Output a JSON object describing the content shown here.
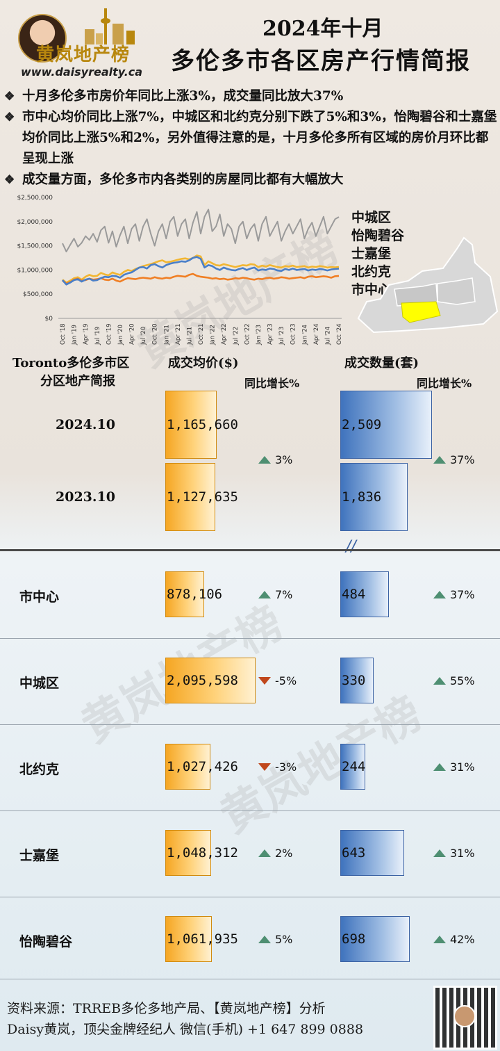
{
  "brand": {
    "name": "黄岚地产榜",
    "url": "www.daisyrealty.ca"
  },
  "title": {
    "line1": "2024年十月",
    "line2": "多伦多市各区房产行情简报"
  },
  "bullets": [
    "十月多伦多市房价年同比上涨3%，成交量同比放大37%",
    "市中心均价同比上涨7%，中城区和北约克分别下跌了5%和3%，怡陶碧谷和士嘉堡均价同比上涨5%和2%，另外值得注意的是，十月多伦多所有区域的房价月环比都呈现上涨",
    "成交量方面，多伦多市内各类别的房屋同比都有大幅放大"
  ],
  "map_legend": [
    "中城区",
    "怡陶碧谷",
    "士嘉堡",
    "北约克",
    "市中心"
  ],
  "colors": {
    "orange": "#f5a623",
    "blue": "#4a7fc8",
    "gray": "#9a9a9a",
    "line_orange": "#f07f24",
    "line_yellow": "#f2b632",
    "highlight": "#ffff00",
    "up": "#4e8f72",
    "down": "#c0471c"
  },
  "table": {
    "header_left": "Toronto多伦多市区",
    "header_left2": "分区地产简报",
    "header_price": "成交均价($)",
    "header_volume": "成交数量(套)",
    "header_yoy_price": "同比增长%",
    "header_yoy_volume": "同比增长%",
    "total_rows": [
      {
        "label": "2024.10",
        "price": "1,165,660",
        "volume": "2,509"
      },
      {
        "label": "2023.10",
        "price": "1,127,635",
        "volume": "1,836"
      }
    ],
    "total_price_change": "3%",
    "total_volume_change": "37%",
    "break_mark": "//",
    "districts": [
      {
        "label": "市中心",
        "price": "878,106",
        "price_value": 878106,
        "price_change": "7%",
        "price_dir": "up",
        "volume": "484",
        "volume_value": 484,
        "volume_change": "37%"
      },
      {
        "label": "中城区",
        "price": "2,095,598",
        "price_value": 2095598,
        "price_change": "-5%",
        "price_dir": "down",
        "volume": "330",
        "volume_value": 330,
        "volume_change": "55%"
      },
      {
        "label": "北约克",
        "price": "1,027,426",
        "price_value": 1027426,
        "price_change": "-3%",
        "price_dir": "down",
        "volume": "244",
        "volume_value": 244,
        "volume_change": "31%"
      },
      {
        "label": "士嘉堡",
        "price": "1,048,312",
        "price_value": 1048312,
        "price_change": "2%",
        "price_dir": "up",
        "volume": "643",
        "volume_value": 643,
        "volume_change": "31%"
      },
      {
        "label": "怡陶碧谷",
        "price": "1,061,935",
        "price_value": 1061935,
        "price_change": "5%",
        "price_dir": "up",
        "volume": "698",
        "volume_value": 698,
        "volume_change": "42%"
      }
    ]
  },
  "footer": {
    "line1": "资料来源：TRREB多伦多地产局、【黄岚地产榜】分析",
    "line2": "Daisy黄岚，顶尖金牌经纪人   微信(手机) +1 647 899 0888"
  },
  "watermark": "黄岚地产榜",
  "chart_data": {
    "type": "line",
    "ylim": [
      0,
      2500000
    ],
    "yticks": [
      "$0",
      "$500,000",
      "$1,000,000",
      "$1,500,000",
      "$2,000,000",
      "$2,500,000"
    ],
    "x_tick_labels": [
      "Oct '18",
      "Jan '19",
      "Apr '19",
      "Jul '19",
      "Oct '19",
      "Jan '20",
      "Apr '20",
      "Jul '20",
      "Oct '20",
      "Jan '21",
      "Apr '21",
      "Jul '21",
      "Oct '21",
      "Jan '22",
      "Apr '22",
      "Jul '22",
      "Oct '22",
      "Jan '23",
      "Apr '23",
      "Jul '23",
      "Oct '23",
      "Jan '24",
      "Apr '24",
      "Jul '24",
      "Oct '24"
    ],
    "series": [
      {
        "color": "#9a9a9a",
        "values": [
          1550000,
          1380000,
          1520000,
          1650000,
          1480000,
          1560000,
          1700000,
          1620000,
          1750000,
          1580000,
          1820000,
          1900000,
          1560000,
          1800000,
          1480000,
          1720000,
          1900000,
          1550000,
          1850000,
          1950000,
          1600000,
          1900000,
          2050000,
          1750000,
          1500000,
          1800000,
          1950000,
          1650000,
          2000000,
          2100000,
          1700000,
          1950000,
          2050000,
          1650000,
          1980000,
          2200000,
          1750000,
          2100000,
          2250000,
          1800000,
          1900000,
          2150000,
          1700000,
          1950000,
          1850000,
          1550000,
          1900000,
          2000000,
          1650000,
          1850000,
          1950000,
          1600000,
          1950000,
          2100000,
          1700000,
          1850000,
          2000000,
          1600000,
          1800000,
          1950000,
          1750000,
          1900000,
          2050000,
          1650000,
          1850000,
          1980000,
          1700000,
          1900000,
          2100000,
          1750000,
          1900000,
          2050000,
          2095598
        ]
      },
      {
        "color": "#f2b632",
        "values": [
          800000,
          740000,
          780000,
          830000,
          850000,
          800000,
          860000,
          900000,
          870000,
          880000,
          940000,
          910000,
          890000,
          950000,
          920000,
          900000,
          960000,
          1000000,
          980000,
          1020000,
          1050000,
          1080000,
          1100000,
          1120000,
          1150000,
          1180000,
          1200000,
          1160000,
          1170000,
          1190000,
          1210000,
          1230000,
          1240000,
          1220000,
          1250000,
          1300000,
          1280000,
          1100000,
          1180000,
          1140000,
          1100000,
          1090000,
          1120000,
          1100000,
          1080000,
          1060000,
          1080000,
          1100000,
          1090000,
          1120000,
          1110000,
          1060000,
          1090000,
          1070000,
          1100000,
          1080000,
          1060000,
          1050000,
          1080000,
          1070000,
          1090000,
          1060000,
          1070000,
          1080000,
          1050000,
          1070000,
          1060000,
          1080000,
          1070000,
          1050000,
          1060000,
          1055000,
          1061935
        ]
      },
      {
        "color": "#f07f24",
        "values": [
          780000,
          720000,
          750000,
          800000,
          820000,
          780000,
          790000,
          820000,
          800000,
          810000,
          830000,
          800000,
          790000,
          820000,
          780000,
          760000,
          800000,
          830000,
          820000,
          810000,
          830000,
          840000,
          830000,
          820000,
          850000,
          830000,
          820000,
          840000,
          830000,
          860000,
          880000,
          870000,
          860000,
          900000,
          920000,
          880000,
          860000,
          850000,
          840000,
          820000,
          830000,
          810000,
          820000,
          800000,
          810000,
          830000,
          820000,
          840000,
          830000,
          810000,
          800000,
          820000,
          810000,
          830000,
          840000,
          820000,
          830000,
          850000,
          840000,
          820000,
          830000,
          840000,
          850000,
          830000,
          860000,
          870000,
          850000,
          860000,
          870000,
          860000,
          840000,
          870000,
          878106
        ]
      },
      {
        "color": "#4a7fc8",
        "values": [
          790000,
          700000,
          740000,
          790000,
          810000,
          760000,
          800000,
          820000,
          780000,
          790000,
          830000,
          860000,
          850000,
          880000,
          870000,
          840000,
          900000,
          930000,
          950000,
          1000000,
          1050000,
          1060000,
          1030000,
          1100000,
          1120000,
          1080000,
          1050000,
          1100000,
          1130000,
          1150000,
          1160000,
          1180000,
          1170000,
          1200000,
          1250000,
          1270000,
          1230000,
          1050000,
          1100000,
          1080000,
          1030000,
          1000000,
          1050000,
          1020000,
          1000000,
          990000,
          1020000,
          1040000,
          1000000,
          1030000,
          1050000,
          990000,
          1010000,
          1000000,
          1030000,
          1020000,
          990000,
          980000,
          1020000,
          1000000,
          1030000,
          1000000,
          1010000,
          1020000,
          990000,
          1010000,
          1000000,
          1020000,
          1010000,
          990000,
          1010000,
          1020000,
          1027426
        ]
      }
    ],
    "bars": {
      "price": {
        "categories": [
          "2024.10",
          "2023.10",
          "市中心",
          "中城区",
          "北约克",
          "士嘉堡",
          "怡陶碧谷"
        ],
        "values": [
          1165660,
          1127635,
          878106,
          2095598,
          1027426,
          1048312,
          1061935
        ]
      },
      "volume": {
        "categories": [
          "2024.10",
          "2023.10",
          "市中心",
          "中城区",
          "北约克",
          "士嘉堡",
          "怡陶碧谷"
        ],
        "values": [
          2509,
          1836,
          484,
          330,
          244,
          643,
          698
        ]
      }
    }
  }
}
